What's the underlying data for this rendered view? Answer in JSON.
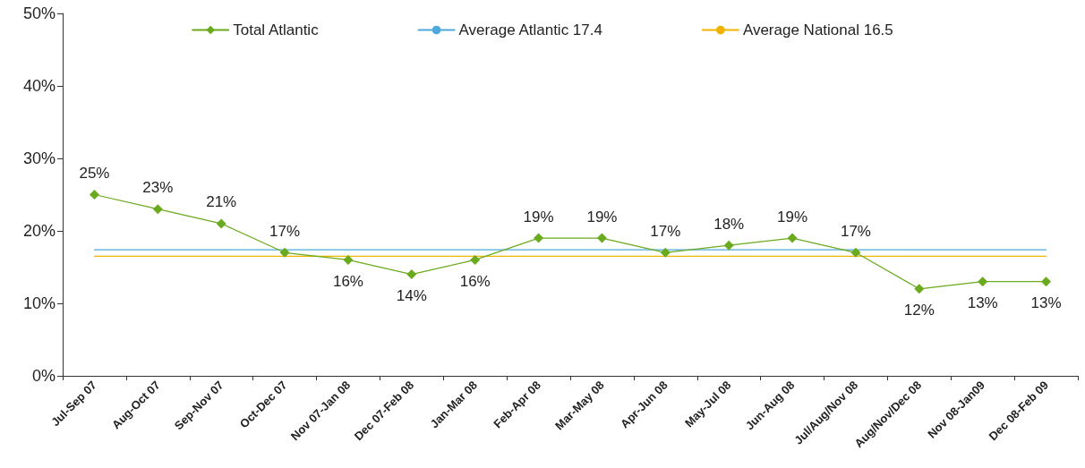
{
  "chart_data": {
    "type": "line",
    "categories": [
      "Jul-Sep 07",
      "Aug-Oct 07",
      "Sep-Nov 07",
      "Oct-Dec 07",
      "Nov 07-Jan 08",
      "Dec 07-Feb 08",
      "Jan-Mar 08",
      "Feb-Apr 08",
      "Mar-May 08",
      "Apr-Jun 08",
      "May-Jul 08",
      "Jun-Aug 08",
      "Jul/Aug/Nov 08",
      "Aug/Nov/Dec 08",
      "Nov 08-Jan09",
      "Dec 08-Feb 09"
    ],
    "series": [
      {
        "name": "Total Atlantic",
        "color": "#6aaa1e",
        "marker": "diamond",
        "values": [
          25,
          23,
          21,
          17,
          16,
          14,
          16,
          19,
          19,
          17,
          18,
          19,
          17,
          12,
          13,
          13
        ],
        "value_labels": [
          "25%",
          "23%",
          "21%",
          "17%",
          "16%",
          "14%",
          "16%",
          "19%",
          "19%",
          "17%",
          "18%",
          "19%",
          "17%",
          "12%",
          "13%",
          "13%"
        ]
      },
      {
        "name": "Average Atlantic 17.4",
        "color": "#4fa8dc",
        "marker": "none",
        "values": [
          17.4,
          17.4,
          17.4,
          17.4,
          17.4,
          17.4,
          17.4,
          17.4,
          17.4,
          17.4,
          17.4,
          17.4,
          17.4,
          17.4,
          17.4,
          17.4
        ]
      },
      {
        "name": "Average National 16.5",
        "color": "#f0b400",
        "marker": "none",
        "values": [
          16.5,
          16.5,
          16.5,
          16.5,
          16.5,
          16.5,
          16.5,
          16.5,
          16.5,
          16.5,
          16.5,
          16.5,
          16.5,
          16.5,
          16.5,
          16.5
        ]
      }
    ],
    "ylim": [
      0,
      50
    ],
    "yticks": [
      {
        "value": 0,
        "label": "0%"
      },
      {
        "value": 10,
        "label": "10%"
      },
      {
        "value": 20,
        "label": "20%"
      },
      {
        "value": 30,
        "label": "30%"
      },
      {
        "value": 40,
        "label": "40%"
      },
      {
        "value": 50,
        "label": "50%"
      }
    ],
    "grid": false,
    "legend": "top",
    "line_style": "solid"
  }
}
